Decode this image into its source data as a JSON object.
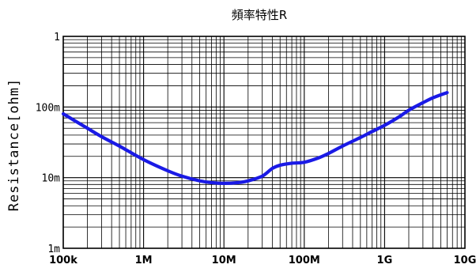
{
  "chart_data": {
    "type": "line",
    "title": "頻率特性R",
    "ylabel": "Resistance[ohm]",
    "xlabel": "",
    "x_scale": "log",
    "y_scale": "log",
    "xlim": [
      100000,
      10000000000
    ],
    "ylim": [
      0.001,
      1
    ],
    "x_ticks": [
      {
        "value": 100000,
        "label": "100k"
      },
      {
        "value": 1000000,
        "label": "1M"
      },
      {
        "value": 10000000,
        "label": "10M"
      },
      {
        "value": 100000000,
        "label": "100M"
      },
      {
        "value": 1000000000,
        "label": "1G"
      },
      {
        "value": 10000000000,
        "label": "10G"
      }
    ],
    "y_ticks": [
      {
        "value": 0.001,
        "label": "1m"
      },
      {
        "value": 0.01,
        "label": "10m"
      },
      {
        "value": 0.1,
        "label": "100m"
      },
      {
        "value": 1,
        "label": "1"
      }
    ],
    "grid": true,
    "series": [
      {
        "color": "#1a1ae6",
        "x": [
          100000,
          200000,
          300000,
          500000,
          1000000,
          2000000,
          3000000,
          5000000,
          7000000,
          10000000,
          15000000,
          20000000,
          30000000,
          40000000,
          50000000,
          70000000,
          100000000,
          150000000,
          200000000,
          300000000,
          500000000,
          700000000,
          1000000000,
          1500000000,
          2000000000,
          3000000000,
          4000000000,
          6000000000
        ],
        "y": [
          0.08,
          0.05,
          0.038,
          0.028,
          0.018,
          0.0125,
          0.0105,
          0.009,
          0.0085,
          0.0083,
          0.0085,
          0.009,
          0.0105,
          0.0135,
          0.015,
          0.016,
          0.0165,
          0.019,
          0.022,
          0.028,
          0.037,
          0.045,
          0.055,
          0.072,
          0.09,
          0.115,
          0.135,
          0.16
        ]
      }
    ]
  }
}
